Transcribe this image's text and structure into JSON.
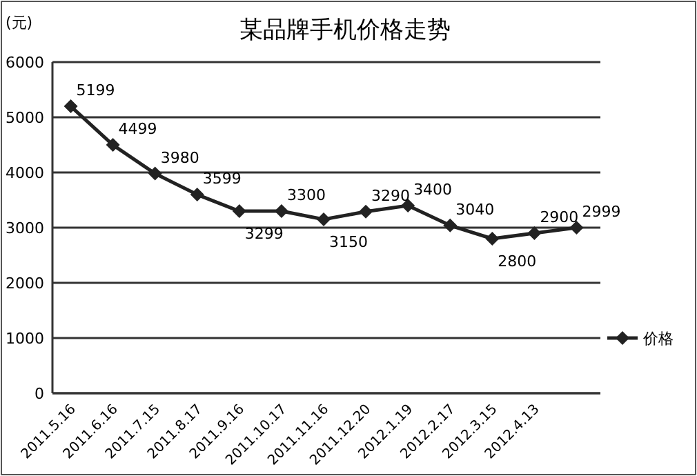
{
  "chart_data": {
    "type": "line",
    "title": "某品牌手机价格走势",
    "ylabel": "(元)",
    "categories": [
      "2011.5.16",
      "2011.6.16",
      "2011.7.15",
      "2011.8.17",
      "2011.9.16",
      "2011.10.17",
      "2011.11.16",
      "2011.12.20",
      "2012.1.19",
      "2012.2.17",
      "2012.3.15",
      "2012.4.13",
      null
    ],
    "series": [
      {
        "name": "价格",
        "color": "#222222",
        "values": [
          5199,
          4499,
          3980,
          3599,
          3299,
          3300,
          3150,
          3290,
          3400,
          3040,
          2800,
          2900,
          2999
        ]
      }
    ],
    "ylim": [
      0,
      6000
    ],
    "yticks": [
      0,
      1000,
      2000,
      3000,
      4000,
      5000,
      6000
    ],
    "grid": "y",
    "legend": "right",
    "marker": "diamond",
    "data_labels": true
  }
}
